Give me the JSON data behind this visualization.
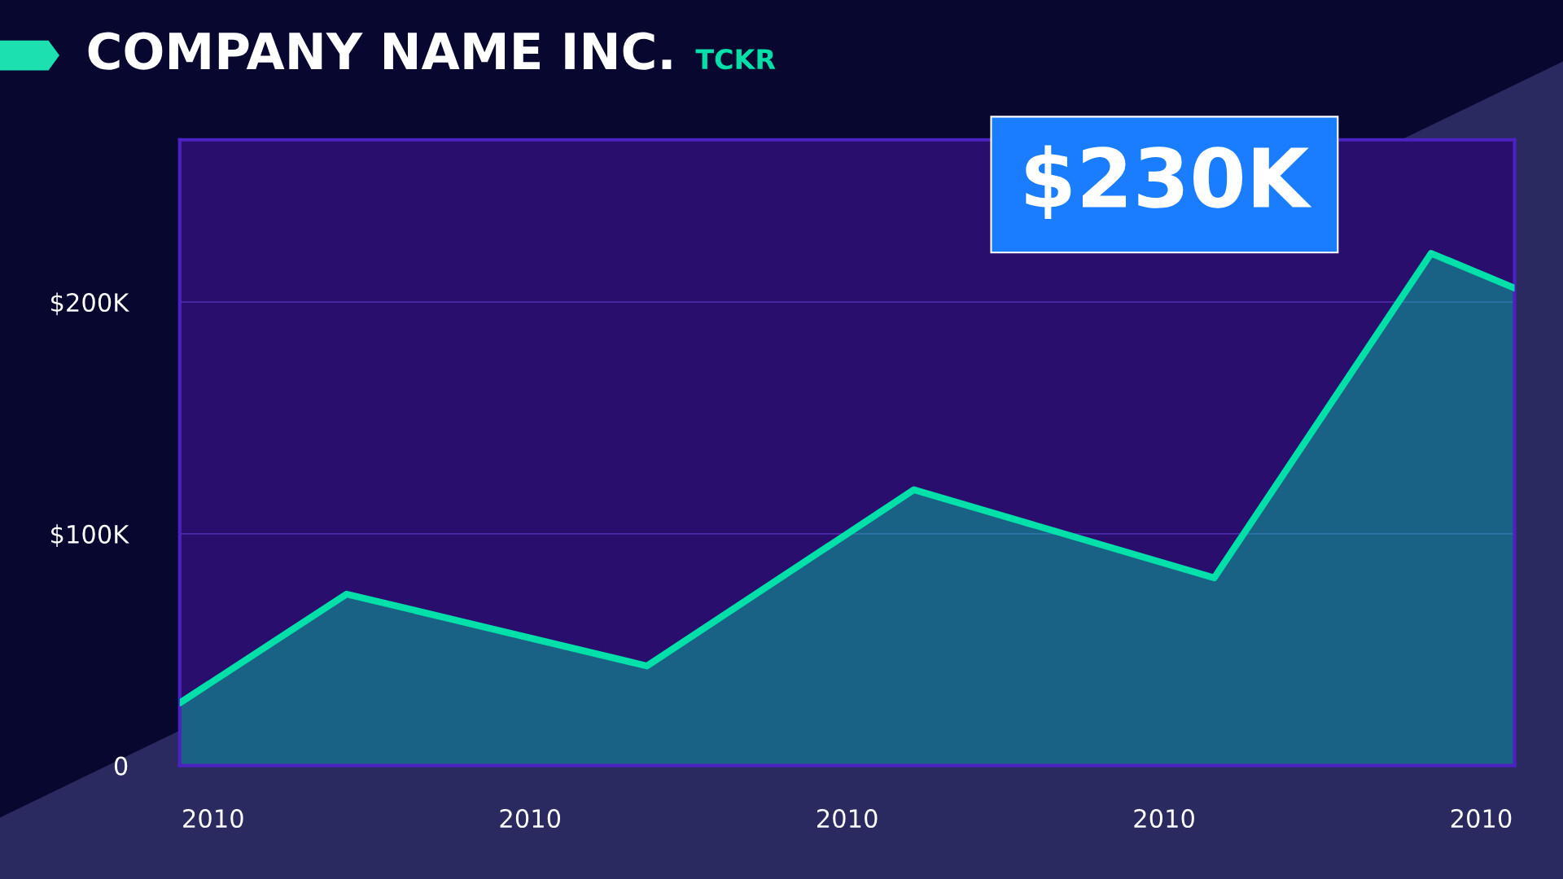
{
  "chart_data": {
    "type": "area",
    "title": "COMPANY NAME INC.",
    "subtitle": "TCKR",
    "annotations": [
      "$230K"
    ],
    "categories": [
      null,
      null,
      "2010",
      null,
      null,
      null,
      null,
      null,
      null,
      null,
      null,
      null,
      null,
      null,
      null,
      null,
      null,
      null,
      null,
      null,
      null,
      "2010",
      null,
      null,
      null,
      null,
      null,
      null,
      null,
      null,
      null,
      null,
      null,
      null,
      null,
      null,
      null,
      null,
      null,
      null,
      "2010",
      null,
      null,
      null,
      null,
      null,
      null,
      null,
      null,
      null,
      null,
      null,
      null,
      null,
      null,
      null,
      null,
      null,
      null,
      "2010",
      null,
      null,
      null,
      null,
      null,
      null,
      null,
      null,
      null,
      null,
      null,
      null,
      null,
      null,
      null,
      null,
      null,
      null,
      "2010",
      null,
      null
    ],
    "series": [
      {
        "color": "#00e0a8",
        "values": [
          27000,
          null,
          null,
          null,
          null,
          null,
          null,
          null,
          null,
          null,
          74000,
          null,
          null,
          null,
          null,
          null,
          null,
          null,
          null,
          null,
          null,
          null,
          null,
          null,
          null,
          null,
          null,
          null,
          43000,
          null,
          null,
          null,
          null,
          null,
          null,
          null,
          null,
          null,
          null,
          null,
          null,
          null,
          null,
          null,
          119000,
          null,
          null,
          null,
          null,
          null,
          null,
          null,
          null,
          null,
          null,
          null,
          null,
          null,
          null,
          null,
          null,
          null,
          81000,
          null,
          null,
          null,
          null,
          null,
          null,
          null,
          null,
          null,
          null,
          null,
          null,
          221000,
          null,
          null,
          null,
          null,
          206000
        ]
      }
    ],
    "ylim": [
      0,
      270000
    ],
    "yticks": [
      0,
      {
        "value": 100000,
        "label": "$100K"
      },
      {
        "value": 200000,
        "label": "$200K"
      }
    ],
    "grid": "y",
    "legend": false
  }
}
